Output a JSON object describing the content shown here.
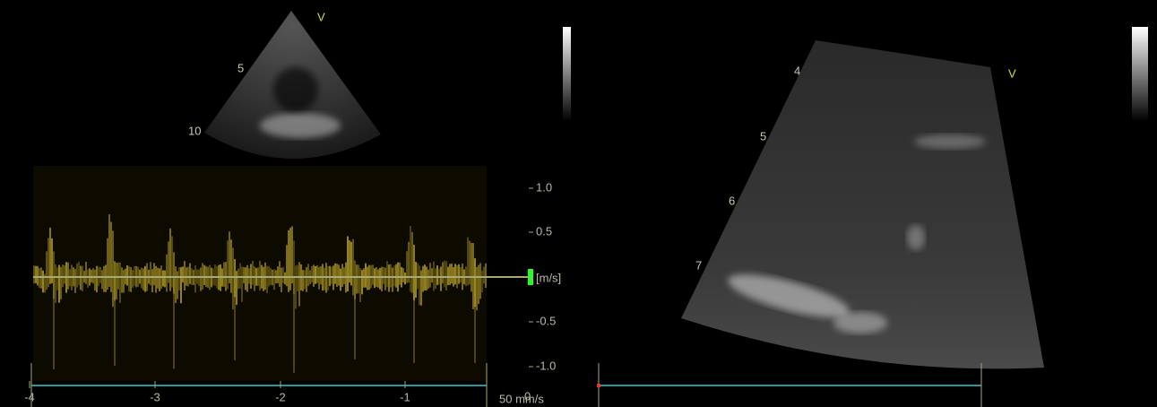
{
  "left_panel": {
    "sector": {
      "marker": "V",
      "depth_labels": [
        "5",
        "10"
      ]
    },
    "doppler": {
      "velocity_labels": [
        "1.0",
        "0.5",
        "[m/s]",
        "-0.5",
        "-1.0"
      ],
      "time_labels": [
        "-4",
        "-3",
        "-2",
        "-1"
      ],
      "sweep_speed": "50 mm/s",
      "zero_label": "0"
    }
  },
  "right_panel": {
    "marker": "V",
    "depth_labels": [
      "4",
      "5",
      "6",
      "7"
    ]
  }
}
